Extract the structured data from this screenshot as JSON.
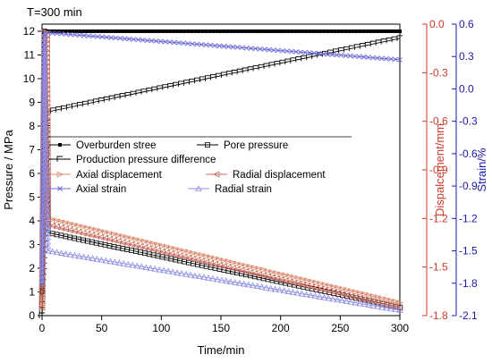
{
  "chart_data": {
    "type": "line",
    "annotation": "T=300 min",
    "xlabel": "Time/min",
    "ylabel_left": "Pressure / MPa",
    "ylabel_right1": "Dispalcement/mm",
    "ylabel_right2": "Strain/%",
    "xlim": [
      0,
      300
    ],
    "ylim_left": [
      0,
      12.3
    ],
    "ylim_right1": [
      -1.8,
      0
    ],
    "ylim_right2": [
      -2.1,
      0.6
    ],
    "x_ticks": [
      "0",
      "50",
      "100",
      "150",
      "200",
      "250",
      "300"
    ],
    "y_ticks_left": [
      "0",
      "1",
      "2",
      "3",
      "4",
      "5",
      "6",
      "7",
      "8",
      "9",
      "10",
      "11",
      "12"
    ],
    "y_ticks_right1": [
      "0.0",
      "-0.3",
      "-0.6",
      "-0.9",
      "-1.2",
      "-1.5",
      "-1.8"
    ],
    "y_ticks_right2": [
      "0.6",
      "0.3",
      "0.0",
      "-0.3",
      "-0.6",
      "-0.9",
      "-1.2",
      "-1.5",
      "-1.8",
      "-2.1"
    ],
    "grid": false,
    "legend_position": "center-left",
    "colors": {
      "axis_left": "#000000",
      "axis_right1": "#cc3a2a",
      "axis_right2": "#1a1aa8",
      "overburden": "#000000",
      "pore": "#000000",
      "production": "#000000",
      "axial_disp": "#d98a6e",
      "radial_disp": "#c96a5e",
      "axial_strain": "#6a6ad8",
      "radial_strain": "#8f8fe6"
    },
    "series": [
      {
        "name": "Overburden stree",
        "axis": "left",
        "x": [
          0,
          2,
          5,
          300
        ],
        "y": [
          1.0,
          12.0,
          12.0,
          12.0
        ]
      },
      {
        "name": "Pore pressure",
        "axis": "left",
        "x": [
          0,
          2,
          3,
          5,
          300
        ],
        "y": [
          1.0,
          12.0,
          8.5,
          3.5,
          0.35
        ]
      },
      {
        "name": "Production pressure difference",
        "axis": "left",
        "x": [
          0,
          3,
          5,
          300
        ],
        "y": [
          0.0,
          3.5,
          8.6,
          11.7
        ]
      },
      {
        "name": "Axial displacement",
        "axis": "right1",
        "x": [
          0,
          2,
          4,
          5,
          300
        ],
        "y": [
          -1.75,
          -0.05,
          -0.05,
          -1.2,
          -1.72
        ]
      },
      {
        "name": "Radial displacement",
        "axis": "right1",
        "x": [
          0,
          2,
          4,
          5,
          300
        ],
        "y": [
          -1.75,
          -0.07,
          -0.07,
          -1.24,
          -1.75
        ]
      },
      {
        "name": "Axial strain",
        "axis": "right2",
        "x": [
          0,
          2,
          5,
          300
        ],
        "y": [
          -1.8,
          0.52,
          0.52,
          0.27
        ]
      },
      {
        "name": "Radial strain",
        "axis": "right2",
        "x": [
          0,
          2,
          5,
          300
        ],
        "y": [
          -1.8,
          0.5,
          -1.5,
          -2.05
        ]
      }
    ]
  }
}
